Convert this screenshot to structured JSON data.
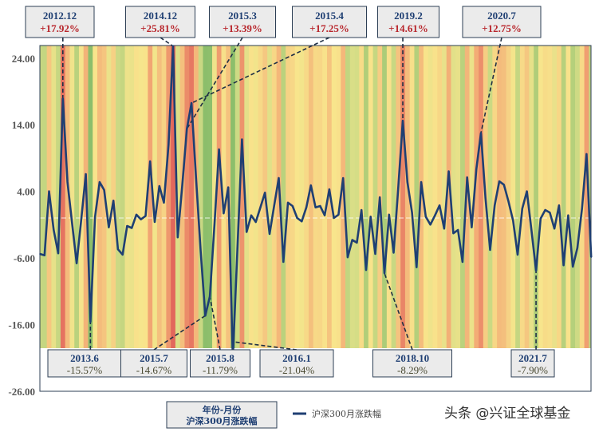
{
  "chart_data": {
    "type": "line",
    "title": "",
    "xlabel": "",
    "ylabel": "",
    "start_month": "2012.7",
    "frequency": "monthly",
    "series": [
      {
        "name": "沪深300月涨跌幅",
        "color": "#1f3f73",
        "values": [
          -5.4,
          -5.6,
          4.0,
          -1.8,
          -5.3,
          17.92,
          5.4,
          -0.7,
          -6.8,
          -0.3,
          6.6,
          -15.57,
          0.1,
          5.4,
          4.2,
          -1.4,
          2.6,
          -4.7,
          -5.5,
          -1.2,
          -1.5,
          0.5,
          -0.2,
          0.3,
          8.5,
          -0.6,
          4.8,
          2.3,
          11.0,
          25.81,
          -2.9,
          5.0,
          13.39,
          17.25,
          6.0,
          -5.0,
          -14.67,
          -11.79,
          -1.0,
          10.3,
          0.7,
          4.6,
          -21.04,
          -4.6,
          11.8,
          -2.1,
          0.4,
          -0.6,
          1.6,
          3.8,
          -2.4,
          1.9,
          6.0,
          -6.6,
          2.3,
          1.8,
          0.0,
          -0.5,
          1.6,
          4.9,
          1.6,
          1.8,
          0.4,
          4.3,
          0.0,
          0.5,
          6.0,
          -5.9,
          -3.3,
          -3.7,
          1.2,
          -7.8,
          0.2,
          -5.4,
          3.1,
          -8.29,
          0.5,
          -5.2,
          4.5,
          14.61,
          5.4,
          0.8,
          -7.4,
          5.4,
          0.2,
          -1.0,
          0.4,
          1.9,
          -1.6,
          7.0,
          -2.3,
          -1.8,
          -6.6,
          6.1,
          -1.4,
          7.3,
          12.75,
          3.0,
          -4.8,
          1.9,
          5.5,
          5.0,
          2.5,
          -0.4,
          -5.5,
          1.4,
          4.0,
          -1.8,
          -7.9,
          -0.1,
          1.2,
          0.8,
          -1.6,
          1.9,
          -7.1,
          0.4,
          -7.3,
          -4.5,
          1.4,
          9.6,
          -5.9
        ]
      }
    ],
    "ylim": [
      -26,
      26
    ],
    "yticks": [
      "24.00",
      "14.00",
      "4.00",
      "-6.00",
      "-16.00",
      "-26.00"
    ],
    "ytick_values": [
      24,
      14,
      4,
      -6,
      -16,
      -26
    ],
    "background": "monthly heat stripes colored by return (green = low, yellow = neutral, red = high)",
    "zero_line": true,
    "annotations_top": [
      {
        "date": "2012.12",
        "index": 5,
        "value": "+17.92%"
      },
      {
        "date": "2014.12",
        "index": 29,
        "value": "+25.81%"
      },
      {
        "date": "2015.3",
        "index": 32,
        "value": "+13.39%"
      },
      {
        "date": "2015.4",
        "index": 33,
        "value": "+17.25%"
      },
      {
        "date": "2019.2",
        "index": 79,
        "value": "+14.61%"
      },
      {
        "date": "2020.7",
        "index": 96,
        "value": "+12.75%"
      }
    ],
    "annotations_bottom": [
      {
        "date": "2013.6",
        "index": 11,
        "value": "-15.57%"
      },
      {
        "date": "2015.7",
        "index": 36,
        "value": "-14.67%"
      },
      {
        "date": "2015.8",
        "index": 37,
        "value": "-11.79%"
      },
      {
        "date": "2016.1",
        "index": 42,
        "value": "-21.04%"
      },
      {
        "date": "2018.10",
        "index": 75,
        "value": "-8.29%"
      },
      {
        "date": "2021.7",
        "index": 108,
        "value": "-7.90%"
      }
    ],
    "legend": {
      "box_line1": "年份-月份",
      "box_line2": "沪深300月涨跌幅",
      "series_label": "沪深300月涨跌幅",
      "placement": "bottom-center"
    }
  },
  "watermark": "头条 @兴证全球基金",
  "colors": {
    "line": "#1f3f73",
    "up": "#b8262c",
    "down": "#4a4a32",
    "frame": "#2d3f55"
  }
}
